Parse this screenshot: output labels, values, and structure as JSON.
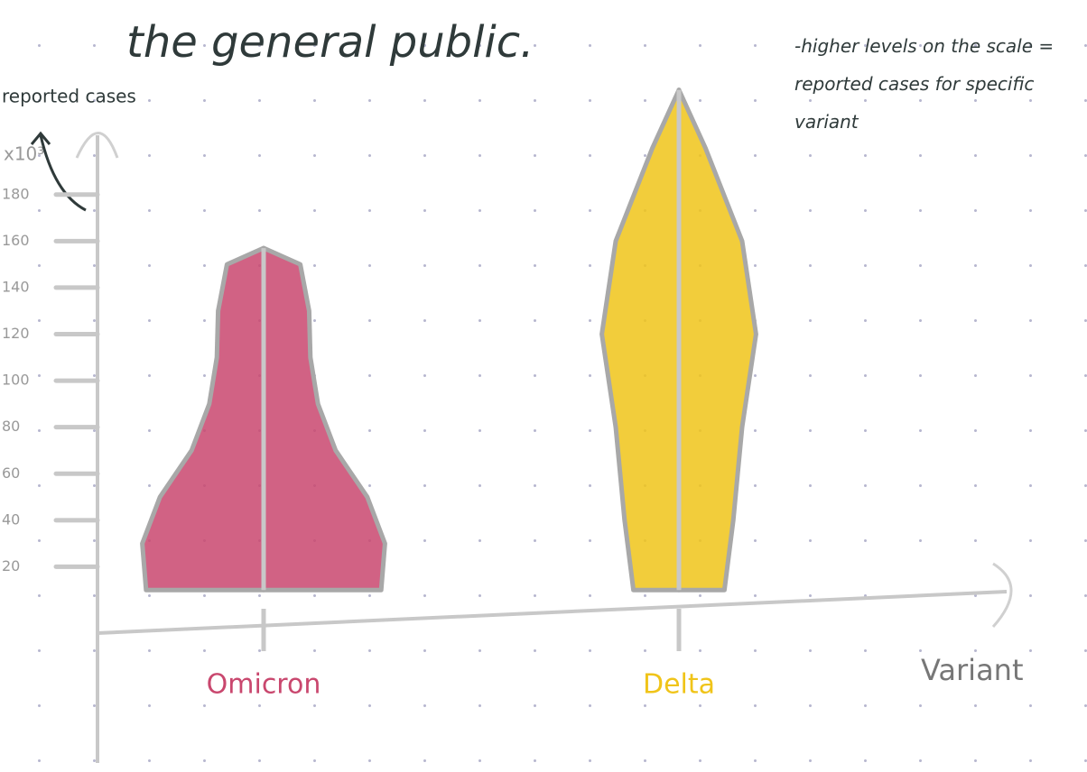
{
  "chart_data": {
    "type": "violin",
    "title": "the general public.",
    "y_label": "reported cases",
    "y_unit": "x10³",
    "x_label": "Variant",
    "annotation": "-higher levels on the scale = reported cases for specific variant",
    "categories": [
      "Omicron",
      "Delta"
    ],
    "series": [
      {
        "name": "Omicron",
        "color": "#c9476e",
        "density_y": [
          10,
          30,
          50,
          70,
          90,
          110,
          130,
          150,
          157
        ],
        "density": [
          0.93,
          0.96,
          0.82,
          0.57,
          0.43,
          0.37,
          0.36,
          0.29,
          0
        ]
      },
      {
        "name": "Delta",
        "color": "#f0c419",
        "density_y": [
          10,
          40,
          80,
          120,
          160,
          200,
          225
        ],
        "density": [
          0.36,
          0.43,
          0.5,
          0.61,
          0.5,
          0.21,
          0
        ]
      }
    ],
    "ylim": [
      0,
      240
    ],
    "yticks": [
      20,
      40,
      60,
      80,
      100,
      120,
      140,
      160,
      180
    ]
  }
}
